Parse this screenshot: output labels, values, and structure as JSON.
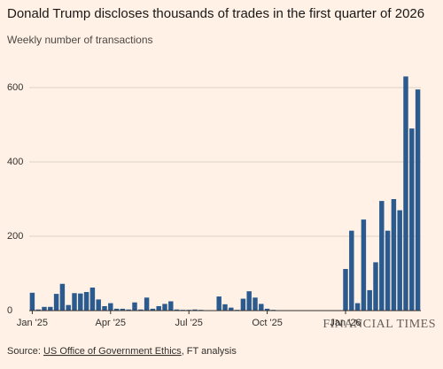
{
  "chart_data": {
    "type": "bar",
    "title": "Donald Trump discloses thousands of trades in the first quarter of 2026",
    "subtitle": "Weekly number of transactions",
    "categories": [
      "Jan '25",
      null,
      null,
      null,
      null,
      null,
      null,
      null,
      null,
      null,
      null,
      null,
      null,
      "Apr '25",
      null,
      null,
      null,
      null,
      null,
      null,
      null,
      null,
      null,
      null,
      null,
      null,
      "Jul '25",
      null,
      null,
      null,
      null,
      null,
      null,
      null,
      null,
      null,
      null,
      null,
      null,
      "Oct '25",
      null,
      null,
      null,
      null,
      null,
      null,
      null,
      null,
      null,
      null,
      null,
      null,
      "Jan '26",
      null,
      null,
      null,
      null,
      null,
      null,
      null,
      null,
      null,
      null,
      null,
      null
    ],
    "values": [
      48,
      3,
      10,
      10,
      45,
      72,
      15,
      47,
      46,
      50,
      62,
      30,
      12,
      20,
      5,
      5,
      3,
      22,
      3,
      35,
      5,
      12,
      18,
      25,
      3,
      2,
      2,
      3,
      2,
      0,
      0,
      38,
      17,
      8,
      2,
      32,
      52,
      35,
      18,
      5,
      2,
      1,
      1,
      1,
      1,
      1,
      1,
      1,
      1,
      1,
      1,
      1,
      112,
      215,
      20,
      245,
      55,
      130,
      295,
      215,
      300,
      270,
      630,
      490,
      595
    ],
    "color": "#2b5a8f",
    "ylim": [
      0,
      650
    ],
    "yticks": [
      0,
      200,
      400,
      600
    ],
    "grid": true
  },
  "footer": {
    "source_prefix": "Source:",
    "source_link": "US Office of Government Ethics",
    "source_suffix": ", FT analysis",
    "brand": "FINANCIAL TIMES"
  }
}
